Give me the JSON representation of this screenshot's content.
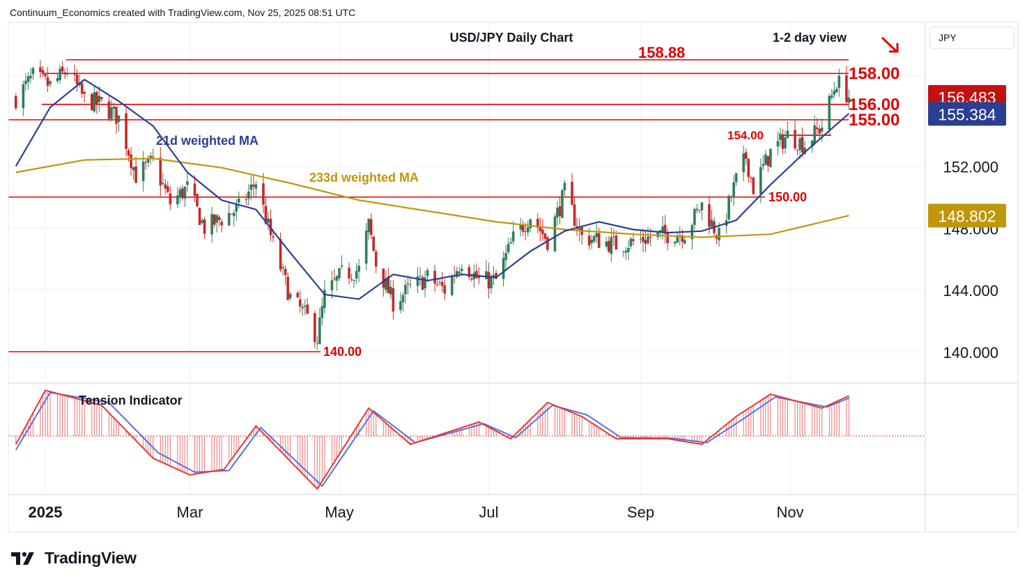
{
  "header": {
    "attribution": "Continuum_Economics created with TradingView.com, Nov 25, 2025 08:51 UTC"
  },
  "footer": {
    "brand": "TradingView"
  },
  "currency_selector": {
    "value": "JPY"
  },
  "colors": {
    "price_up": "#2e7d5b",
    "price_down": "#c62828",
    "level_line": "#e00000",
    "ma21": "#2a3f8f",
    "ma233": "#c0960a",
    "osc_fast": "#e53935",
    "osc_slow": "#5b6ee0",
    "grid": "#eef0f3",
    "price_badge": "#c41010",
    "ma21_badge": "#2a3f8f",
    "ma233_badge": "#c0960a"
  },
  "chart_data": {
    "type": "candlestick",
    "title": "USD/JPY Daily Chart",
    "view": "1-2 day view",
    "view_direction": "down",
    "x_ticks": [
      "2025",
      "Mar",
      "May",
      "Jul",
      "Sep",
      "Nov"
    ],
    "y_ticks": [
      140.0,
      144.0,
      148.0,
      152.0
    ],
    "y_tick_labels": [
      "140.000",
      "144.000",
      "148.000",
      "152.000"
    ],
    "ylim": [
      138.0,
      161.0
    ],
    "grid": true,
    "levels": [
      {
        "value": 158.88,
        "label": "158.88"
      },
      {
        "value": 158.0,
        "label": "158.00"
      },
      {
        "value": 156.0,
        "label": "156.00"
      },
      {
        "value": 155.0,
        "label": "155.00"
      },
      {
        "value": 154.0,
        "label": "154.00"
      },
      {
        "value": 150.0,
        "label": "150.00"
      },
      {
        "value": 140.0,
        "label": "140.00"
      }
    ],
    "series": [
      {
        "name": "21d weighted MA",
        "last": 155.384,
        "last_label": "155.384"
      },
      {
        "name": "233d weighted MA",
        "last": 148.802,
        "last_label": "148.802"
      }
    ],
    "last_price": 156.483,
    "last_price_label": "156.483",
    "close_path": [
      [
        "2024-12-20",
        156.4
      ],
      [
        "2024-12-27",
        157.8
      ],
      [
        "2025-01-03",
        157.2
      ],
      [
        "2025-01-10",
        158.2
      ],
      [
        "2025-01-17",
        156.3
      ],
      [
        "2025-01-24",
        156.0
      ],
      [
        "2025-01-31",
        155.1
      ],
      [
        "2025-02-07",
        151.4
      ],
      [
        "2025-02-14",
        152.3
      ],
      [
        "2025-02-21",
        149.6
      ],
      [
        "2025-02-28",
        150.6
      ],
      [
        "2025-03-07",
        148.0
      ],
      [
        "2025-03-14",
        148.6
      ],
      [
        "2025-03-21",
        149.3
      ],
      [
        "2025-03-28",
        151.0
      ],
      [
        "2025-04-04",
        146.9
      ],
      [
        "2025-04-11",
        143.5
      ],
      [
        "2025-04-18",
        142.2
      ],
      [
        "2025-04-22",
        140.9
      ],
      [
        "2025-04-25",
        143.6
      ],
      [
        "2025-05-02",
        145.0
      ],
      [
        "2025-05-09",
        145.3
      ],
      [
        "2025-05-13",
        148.2
      ],
      [
        "2025-05-16",
        145.7
      ],
      [
        "2025-05-23",
        143.2
      ],
      [
        "2025-05-30",
        144.1
      ],
      [
        "2025-06-06",
        144.8
      ],
      [
        "2025-06-13",
        144.0
      ],
      [
        "2025-06-20",
        145.9
      ],
      [
        "2025-06-27",
        144.6
      ],
      [
        "2025-07-04",
        144.6
      ],
      [
        "2025-07-11",
        147.3
      ],
      [
        "2025-07-18",
        148.8
      ],
      [
        "2025-07-25",
        147.2
      ],
      [
        "2025-08-01",
        150.3
      ],
      [
        "2025-08-08",
        147.4
      ],
      [
        "2025-08-15",
        147.2
      ],
      [
        "2025-08-22",
        146.9
      ],
      [
        "2025-08-29",
        147.1
      ],
      [
        "2025-09-05",
        147.4
      ],
      [
        "2025-09-12",
        147.6
      ],
      [
        "2025-09-19",
        147.7
      ],
      [
        "2025-09-26",
        149.5
      ],
      [
        "2025-10-03",
        147.4
      ],
      [
        "2025-10-10",
        151.1
      ],
      [
        "2025-10-14",
        152.6
      ],
      [
        "2025-10-17",
        150.6
      ],
      [
        "2025-10-24",
        152.9
      ],
      [
        "2025-10-31",
        154.0
      ],
      [
        "2025-11-07",
        153.4
      ],
      [
        "2025-11-14",
        154.6
      ],
      [
        "2025-11-20",
        157.5
      ],
      [
        "2025-11-25",
        156.5
      ]
    ],
    "ma21_path": [
      [
        "2024-12-20",
        152.0
      ],
      [
        "2025-01-03",
        155.8
      ],
      [
        "2025-01-17",
        157.6
      ],
      [
        "2025-01-31",
        156.2
      ],
      [
        "2025-02-14",
        154.6
      ],
      [
        "2025-02-28",
        151.6
      ],
      [
        "2025-03-14",
        149.8
      ],
      [
        "2025-03-28",
        149.2
      ],
      [
        "2025-04-11",
        146.4
      ],
      [
        "2025-04-25",
        143.7
      ],
      [
        "2025-05-09",
        143.4
      ],
      [
        "2025-05-23",
        145.0
      ],
      [
        "2025-06-06",
        144.6
      ],
      [
        "2025-06-20",
        145.0
      ],
      [
        "2025-07-04",
        144.8
      ],
      [
        "2025-07-18",
        146.5
      ],
      [
        "2025-08-01",
        147.8
      ],
      [
        "2025-08-15",
        148.4
      ],
      [
        "2025-08-29",
        147.9
      ],
      [
        "2025-09-12",
        147.7
      ],
      [
        "2025-09-26",
        147.8
      ],
      [
        "2025-10-10",
        148.5
      ],
      [
        "2025-10-24",
        150.8
      ],
      [
        "2025-11-07",
        152.9
      ],
      [
        "2025-11-25",
        155.4
      ]
    ],
    "ma233_path": [
      [
        "2024-12-20",
        151.6
      ],
      [
        "2025-01-17",
        152.4
      ],
      [
        "2025-02-14",
        152.5
      ],
      [
        "2025-03-14",
        151.9
      ],
      [
        "2025-04-11",
        150.9
      ],
      [
        "2025-05-09",
        149.8
      ],
      [
        "2025-06-06",
        149.1
      ],
      [
        "2025-07-04",
        148.4
      ],
      [
        "2025-08-01",
        147.9
      ],
      [
        "2025-08-29",
        147.6
      ],
      [
        "2025-09-26",
        147.4
      ],
      [
        "2025-10-24",
        147.6
      ],
      [
        "2025-11-25",
        148.8
      ]
    ],
    "indicator": {
      "name": "Tension Indicator",
      "ylim": [
        -100,
        100
      ],
      "fast_path": [
        [
          "2024-12-20",
          -15
        ],
        [
          "2025-01-01",
          82
        ],
        [
          "2025-01-24",
          55
        ],
        [
          "2025-02-14",
          -40
        ],
        [
          "2025-03-01",
          -70
        ],
        [
          "2025-03-15",
          -60
        ],
        [
          "2025-03-28",
          18
        ],
        [
          "2025-04-22",
          -95
        ],
        [
          "2025-05-13",
          50
        ],
        [
          "2025-05-30",
          -15
        ],
        [
          "2025-06-27",
          25
        ],
        [
          "2025-07-10",
          -5
        ],
        [
          "2025-07-25",
          60
        ],
        [
          "2025-08-08",
          35
        ],
        [
          "2025-08-22",
          -5
        ],
        [
          "2025-09-12",
          -5
        ],
        [
          "2025-09-26",
          -15
        ],
        [
          "2025-10-10",
          35
        ],
        [
          "2025-10-24",
          75
        ],
        [
          "2025-11-14",
          50
        ],
        [
          "2025-11-25",
          72
        ]
      ],
      "slow_path": [
        [
          "2024-12-20",
          -25
        ],
        [
          "2025-01-03",
          78
        ],
        [
          "2025-01-27",
          60
        ],
        [
          "2025-02-16",
          -30
        ],
        [
          "2025-03-03",
          -65
        ],
        [
          "2025-03-17",
          -62
        ],
        [
          "2025-03-30",
          15
        ],
        [
          "2025-04-24",
          -90
        ],
        [
          "2025-05-15",
          45
        ],
        [
          "2025-06-01",
          -12
        ],
        [
          "2025-06-29",
          22
        ],
        [
          "2025-07-12",
          -3
        ],
        [
          "2025-07-27",
          55
        ],
        [
          "2025-08-10",
          38
        ],
        [
          "2025-08-24",
          -3
        ],
        [
          "2025-09-14",
          -4
        ],
        [
          "2025-09-28",
          -12
        ],
        [
          "2025-10-12",
          28
        ],
        [
          "2025-10-26",
          70
        ],
        [
          "2025-11-16",
          52
        ],
        [
          "2025-11-25",
          68
        ]
      ]
    }
  }
}
